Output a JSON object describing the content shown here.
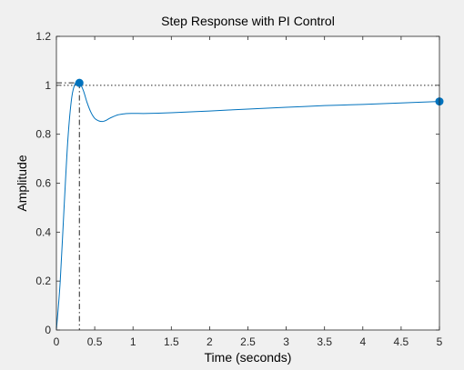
{
  "chart_data": {
    "type": "line",
    "title": "Step Response with PI Control",
    "xlabel": "Time (seconds)",
    "ylabel": "Amplitude",
    "xlim": [
      0,
      5
    ],
    "ylim": [
      0,
      1.2
    ],
    "xticks": [
      0,
      0.5,
      1,
      1.5,
      2,
      2.5,
      3,
      3.5,
      4,
      4.5,
      5
    ],
    "xtick_labels": [
      "0",
      "0.5",
      "1",
      "1.5",
      "2",
      "2.5",
      "3",
      "3.5",
      "4",
      "4.5",
      "5"
    ],
    "yticks": [
      0,
      0.2,
      0.4,
      0.6,
      0.8,
      1,
      1.2
    ],
    "ytick_labels": [
      "0",
      "0.2",
      "0.4",
      "0.6",
      "0.8",
      "1",
      "1.2"
    ],
    "grid": false,
    "series": [
      {
        "color": "#0072bd",
        "x": [
          0,
          0.05,
          0.1,
          0.15,
          0.2,
          0.25,
          0.3,
          0.35,
          0.4,
          0.45,
          0.5,
          0.55,
          0.6,
          0.65,
          0.7,
          0.8,
          0.9,
          1.0,
          1.2,
          1.5,
          2,
          2.5,
          3,
          3.5,
          4,
          4.5,
          5
        ],
        "y": [
          0,
          0.2,
          0.5,
          0.78,
          0.95,
          1.01,
          1.01,
          0.98,
          0.93,
          0.89,
          0.865,
          0.855,
          0.852,
          0.857,
          0.866,
          0.879,
          0.884,
          0.885,
          0.885,
          0.888,
          0.895,
          0.903,
          0.91,
          0.917,
          0.922,
          0.928,
          0.934
        ]
      }
    ],
    "reference_line": {
      "y": 1,
      "style": "dotted"
    },
    "markers": [
      {
        "name": "peak",
        "x": 0.3,
        "y": 1.01,
        "with_guides": true
      },
      {
        "name": "final",
        "x": 5,
        "y": 0.934,
        "with_guides": false
      }
    ]
  }
}
